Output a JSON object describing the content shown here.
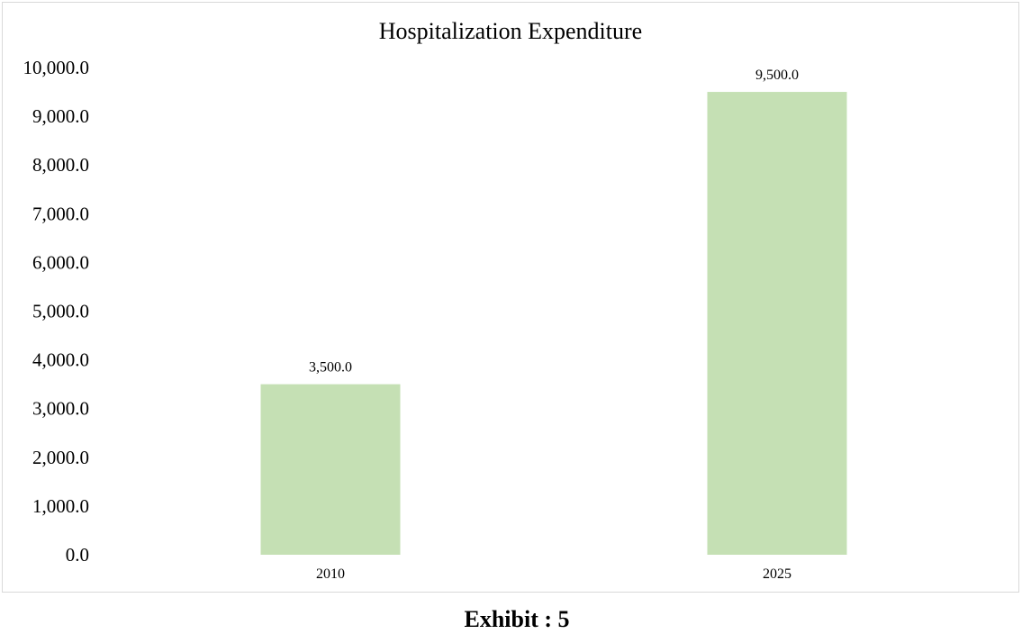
{
  "chart_data": {
    "type": "bar",
    "title": "Hospitalization Expenditure",
    "categories": [
      "2010",
      "2025"
    ],
    "values": [
      3500,
      9500
    ],
    "data_labels": [
      "3,500.0",
      "9,500.0"
    ],
    "ylim": [
      0,
      10000
    ],
    "yticks": [
      0,
      1000,
      2000,
      3000,
      4000,
      5000,
      6000,
      7000,
      8000,
      9000,
      10000
    ],
    "ytick_labels": [
      "0.0",
      "1,000.0",
      "2,000.0",
      "3,000.0",
      "4,000.0",
      "5,000.0",
      "6,000.0",
      "7,000.0",
      "8,000.0",
      "9,000.0",
      "10,000.0"
    ],
    "xlabel": "",
    "ylabel": "",
    "grid": false,
    "legend": "none",
    "bar_color": "#c5e0b4"
  },
  "caption": "Exhibit : 5"
}
